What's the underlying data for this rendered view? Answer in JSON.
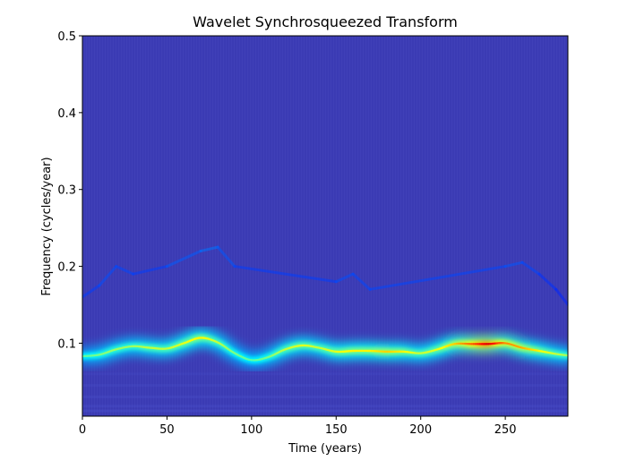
{
  "chart_data": {
    "type": "heatmap",
    "title": "Wavelet Synchrosqueezed Transform",
    "xlabel": "Time (years)",
    "ylabel": "Frequency (cycles/year)",
    "xlim": [
      0,
      287
    ],
    "ylim": [
      0.005,
      0.5
    ],
    "xticks": [
      0,
      50,
      100,
      150,
      200,
      250
    ],
    "xtick_labels": [
      "0",
      "50",
      "100",
      "150",
      "200",
      "250"
    ],
    "yticks": [
      0.1,
      0.2,
      0.3,
      0.4,
      0.5
    ],
    "ytick_labels": [
      "0.1",
      "0.2",
      "0.3",
      "0.4",
      "0.5"
    ],
    "colormap": "jet",
    "background_color": "#3b3bb4",
    "dominant_ridge": {
      "description_points_time": [
        0,
        10,
        20,
        30,
        40,
        50,
        60,
        70,
        80,
        90,
        100,
        110,
        120,
        130,
        140,
        150,
        160,
        170,
        180,
        190,
        200,
        210,
        220,
        230,
        240,
        250,
        260,
        270,
        280,
        287
      ],
      "frequency": [
        0.083,
        0.085,
        0.092,
        0.096,
        0.094,
        0.093,
        0.1,
        0.107,
        0.101,
        0.087,
        0.078,
        0.082,
        0.092,
        0.097,
        0.094,
        0.089,
        0.09,
        0.09,
        0.089,
        0.089,
        0.087,
        0.092,
        0.099,
        0.099,
        0.099,
        0.1,
        0.094,
        0.09,
        0.086,
        0.084
      ],
      "intensity": [
        0.3,
        0.35,
        0.4,
        0.4,
        0.45,
        0.45,
        0.5,
        0.55,
        0.45,
        0.35,
        0.3,
        0.35,
        0.45,
        0.5,
        0.45,
        0.5,
        0.55,
        0.55,
        0.6,
        0.55,
        0.45,
        0.5,
        0.6,
        0.75,
        0.95,
        0.7,
        0.65,
        0.55,
        0.45,
        0.4
      ]
    },
    "secondary_ridge": {
      "time": [
        0,
        10,
        20,
        30,
        50,
        70,
        80,
        90,
        150,
        160,
        170,
        250,
        260,
        270,
        280,
        287
      ],
      "frequency": [
        0.16,
        0.175,
        0.2,
        0.19,
        0.2,
        0.22,
        0.225,
        0.2,
        0.18,
        0.19,
        0.17,
        0.2,
        0.205,
        0.19,
        0.17,
        0.15
      ],
      "intensity": [
        0.1,
        0.12,
        0.15,
        0.1,
        0.12,
        0.2,
        0.2,
        0.1,
        0.12,
        0.15,
        0.1,
        0.15,
        0.15,
        0.1,
        0.08,
        0.06
      ]
    }
  }
}
